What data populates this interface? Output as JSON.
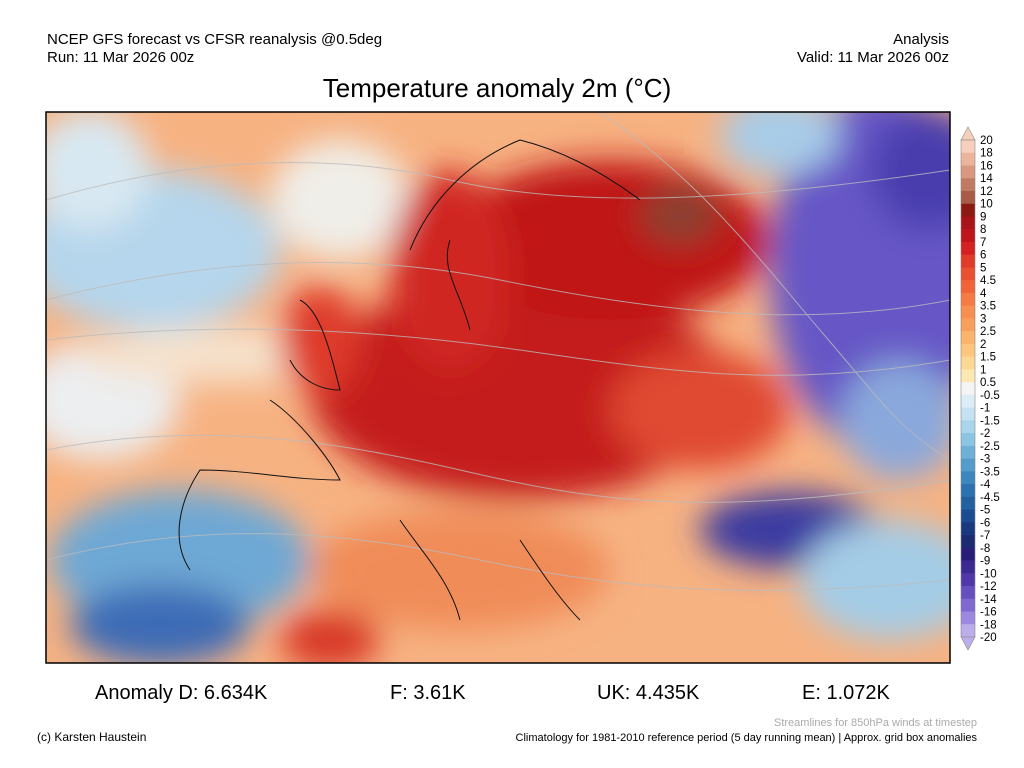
{
  "header": {
    "left": [
      "NCEP GFS forecast vs CFSR reanalysis @0.5deg",
      "Run: 11 Mar 2026 00z"
    ],
    "right": [
      "Analysis",
      "Valid: 11 Mar 2026 00z"
    ]
  },
  "title": "Temperature anomaly 2m (°C)",
  "colorbar": {
    "labels": [
      20,
      18,
      16,
      14,
      12,
      10,
      9,
      8,
      7,
      6,
      5,
      4.5,
      4,
      3.5,
      3,
      2.5,
      2,
      1.5,
      1,
      0.5,
      -0.5,
      -1,
      -1.5,
      -2,
      -2.5,
      -3,
      -3.5,
      -4,
      -4.5,
      -5,
      -6,
      -7,
      -8,
      -9,
      -10,
      -12,
      -14,
      -16,
      -18,
      -20
    ]
  },
  "stats": [
    "Anomaly D: 6.634K",
    "F: 3.61K",
    "UK: 4.435K",
    "E: 1.072K"
  ],
  "footer": {
    "streamlines": "Streamlines for 850hPa winds at timestep",
    "credit": "(c) Karsten Haustein",
    "climatology": "Climatology for 1981-2010 reference period (5 day running mean) | Approx. grid box anomalies"
  }
}
